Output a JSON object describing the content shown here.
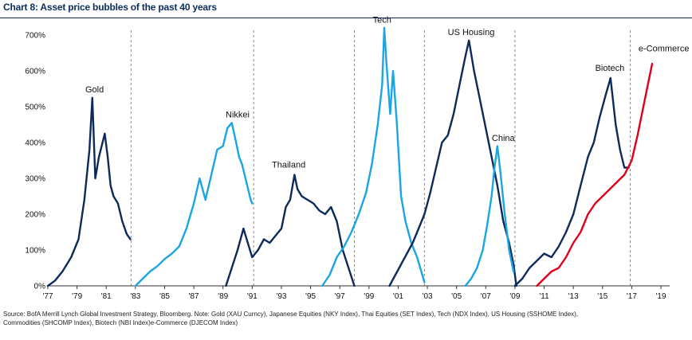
{
  "chart_data": {
    "type": "line",
    "title": "Chart 8: Asset price bubbles of the past 40 years",
    "xlabel": "",
    "ylabel": "",
    "xlim": [
      1977,
      2019.6
    ],
    "ylim": [
      0,
      700
    ],
    "y_ticks": [
      0,
      100,
      200,
      300,
      400,
      500,
      600,
      700
    ],
    "y_tick_labels": [
      "0%",
      "100%",
      "200%",
      "300%",
      "400%",
      "500%",
      "600%",
      "700%"
    ],
    "x_ticks": [
      1977,
      1979,
      1981,
      1983,
      1985,
      1987,
      1989,
      1991,
      1993,
      1995,
      1997,
      1999,
      2001,
      2003,
      2005,
      2007,
      2009,
      2011,
      2013,
      2015,
      2017,
      2019
    ],
    "x_tick_labels": [
      "'77",
      "'79",
      "'81",
      "'83",
      "'85",
      "'87",
      "'89",
      "'91",
      "'93",
      "'95",
      "'97",
      "'99",
      "'01",
      "'03",
      "'05",
      "'07",
      "'09",
      "'11",
      "'13",
      "'15",
      "'17",
      "'19"
    ],
    "dividers": [
      1982.7,
      1991.1,
      1998.0,
      2002.8,
      2009.0,
      2016.9
    ],
    "series": [
      {
        "name": "Gold",
        "color": "#0d2a5a",
        "x": [
          1977.0,
          1977.5,
          1978.0,
          1978.6,
          1979.1,
          1979.5,
          1979.85,
          1980.05,
          1980.25,
          1980.5,
          1980.9,
          1981.1,
          1981.3,
          1981.5,
          1981.8,
          1982.1,
          1982.4,
          1982.65
        ],
        "values": [
          0,
          15,
          40,
          80,
          130,
          240,
          380,
          525,
          300,
          360,
          425,
          360,
          280,
          250,
          230,
          180,
          145,
          130
        ]
      },
      {
        "name": "Nikkei",
        "color": "#1aa6e2",
        "x": [
          1983.0,
          1983.5,
          1984.0,
          1984.5,
          1985.0,
          1985.5,
          1986.0,
          1986.5,
          1987.0,
          1987.4,
          1987.8,
          1988.2,
          1988.6,
          1989.0,
          1989.3,
          1989.6,
          1989.9,
          1990.1,
          1990.3,
          1990.6,
          1990.9,
          1991.0
        ],
        "values": [
          0,
          20,
          40,
          55,
          75,
          90,
          110,
          160,
          230,
          300,
          240,
          310,
          380,
          390,
          440,
          455,
          400,
          360,
          340,
          290,
          240,
          230
        ]
      },
      {
        "name": "Thailand",
        "color": "#0d2a5a",
        "x": [
          1989.2,
          1989.6,
          1990.0,
          1990.4,
          1990.7,
          1991.0,
          1991.4,
          1991.8,
          1992.2,
          1992.6,
          1993.0,
          1993.3,
          1993.6,
          1993.9,
          1994.1,
          1994.4,
          1994.8,
          1995.2,
          1995.6,
          1996.0,
          1996.4,
          1996.8,
          1997.2,
          1997.6,
          1998.0
        ],
        "values": [
          0,
          50,
          100,
          160,
          120,
          80,
          100,
          130,
          120,
          140,
          160,
          220,
          240,
          310,
          270,
          250,
          240,
          230,
          210,
          200,
          220,
          180,
          100,
          50,
          0
        ]
      },
      {
        "name": "Tech",
        "color": "#1aa6e2",
        "x": [
          1995.8,
          1996.3,
          1996.8,
          1997.3,
          1997.8,
          1998.3,
          1998.8,
          1999.2,
          1999.6,
          1999.9,
          2000.05,
          2000.2,
          2000.45,
          2000.65,
          2000.9,
          2001.2,
          2001.5,
          2001.9,
          2002.3,
          2002.8
        ],
        "values": [
          0,
          30,
          80,
          110,
          150,
          200,
          260,
          340,
          450,
          560,
          720,
          620,
          480,
          600,
          460,
          250,
          180,
          120,
          80,
          10
        ]
      },
      {
        "name": "US Housing",
        "color": "#0d2a5a",
        "x": [
          2000.4,
          2000.8,
          2001.2,
          2001.6,
          2002.0,
          2002.4,
          2002.8,
          2003.2,
          2003.6,
          2004.0,
          2004.4,
          2004.8,
          2005.2,
          2005.6,
          2005.85,
          2006.2,
          2006.6,
          2007.0,
          2007.4,
          2007.8,
          2008.2,
          2008.6,
          2008.9,
          2009.1
        ],
        "values": [
          0,
          30,
          60,
          90,
          120,
          160,
          200,
          260,
          330,
          400,
          420,
          480,
          560,
          640,
          685,
          600,
          520,
          440,
          360,
          280,
          180,
          120,
          60,
          0
        ]
      },
      {
        "name": "China",
        "color": "#1aa6e2",
        "x": [
          2005.6,
          2006.0,
          2006.4,
          2006.8,
          2007.1,
          2007.4,
          2007.6,
          2007.8,
          2008.0,
          2008.3,
          2008.6,
          2008.9
        ],
        "values": [
          0,
          20,
          50,
          100,
          170,
          250,
          330,
          390,
          320,
          200,
          100,
          40
        ]
      },
      {
        "name": "Biotech",
        "color": "#0d2a5a",
        "x": [
          2009.0,
          2009.5,
          2010.0,
          2010.5,
          2011.0,
          2011.5,
          2012.0,
          2012.5,
          2013.0,
          2013.5,
          2014.0,
          2014.4,
          2014.8,
          2015.2,
          2015.55,
          2015.9,
          2016.2,
          2016.5,
          2016.8
        ],
        "values": [
          0,
          20,
          50,
          70,
          90,
          80,
          110,
          150,
          200,
          280,
          360,
          400,
          470,
          530,
          580,
          450,
          380,
          330,
          330
        ]
      },
      {
        "name": "e-Commerce",
        "color": "#e0001b",
        "x": [
          2010.5,
          2011.0,
          2011.5,
          2012.0,
          2012.5,
          2013.0,
          2013.5,
          2014.0,
          2014.5,
          2015.0,
          2015.5,
          2016.0,
          2016.5,
          2017.0,
          2017.4,
          2017.8,
          2018.1,
          2018.4
        ],
        "values": [
          0,
          20,
          40,
          50,
          80,
          120,
          150,
          200,
          230,
          250,
          270,
          290,
          310,
          350,
          420,
          500,
          560,
          620
        ]
      }
    ],
    "annotations": [
      {
        "text": "Gold",
        "x": 1980.2,
        "y": 540
      },
      {
        "text": "Nikkei",
        "x": 1990.0,
        "y": 470
      },
      {
        "text": "Thailand",
        "x": 1993.5,
        "y": 330
      },
      {
        "text": "Tech",
        "x": 1999.9,
        "y": 735
      },
      {
        "text": "US Housing",
        "x": 2006.0,
        "y": 700
      },
      {
        "text": "China",
        "x": 2008.2,
        "y": 405
      },
      {
        "text": "Biotech",
        "x": 2015.5,
        "y": 600
      },
      {
        "text": "e-Commerce",
        "x": 2019.2,
        "y": 655
      }
    ]
  },
  "source_note": "Source: BofA Merrill Lynch Global Investment Strategy, Bloomberg. Note: Gold (XAU Curncy), Japanese Equities (NKY Index), Thai Equities (SET Index), Tech (NDX Index), US Housing (SSHOME Index), Commodities (SHCOMP Index), Biotech (NBI Index)e-Commerce (DJECOM Index)"
}
